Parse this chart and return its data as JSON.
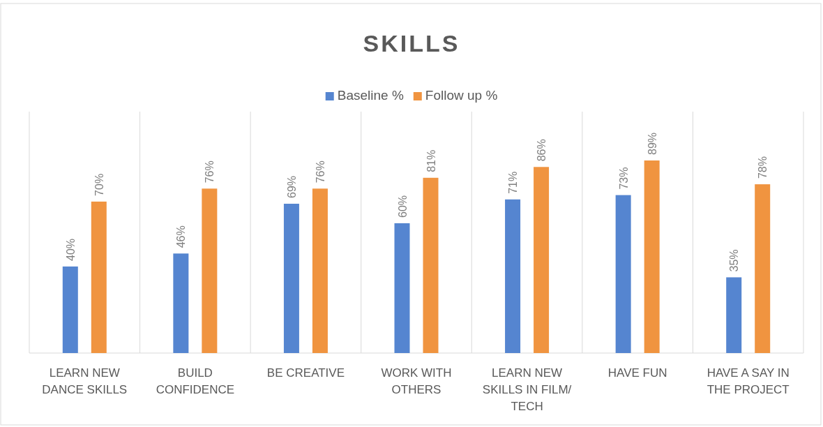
{
  "chart_data": {
    "type": "bar",
    "title": "SKILLS",
    "categories": [
      "LEARN NEW DANCE SKILLS",
      "BUILD CONFIDENCE",
      "BE CREATIVE",
      "WORK WITH OTHERS",
      "LEARN NEW SKILLS IN FILM/ TECH",
      "HAVE FUN",
      "HAVE A SAY IN THE PROJECT"
    ],
    "series": [
      {
        "name": "Baseline %",
        "color": "#5585d0",
        "values": [
          40,
          46,
          69,
          60,
          71,
          73,
          35
        ],
        "value_labels": [
          "40%",
          "46%",
          "69%",
          "60%",
          "71%",
          "73%",
          "35%"
        ]
      },
      {
        "name": "Follow up %",
        "color": "#f09440",
        "values": [
          70,
          76,
          76,
          81,
          86,
          89,
          78
        ],
        "value_labels": [
          "70%",
          "76%",
          "76%",
          "81%",
          "86%",
          "89%",
          "78%"
        ]
      }
    ],
    "grid": "x",
    "legend": "top"
  }
}
